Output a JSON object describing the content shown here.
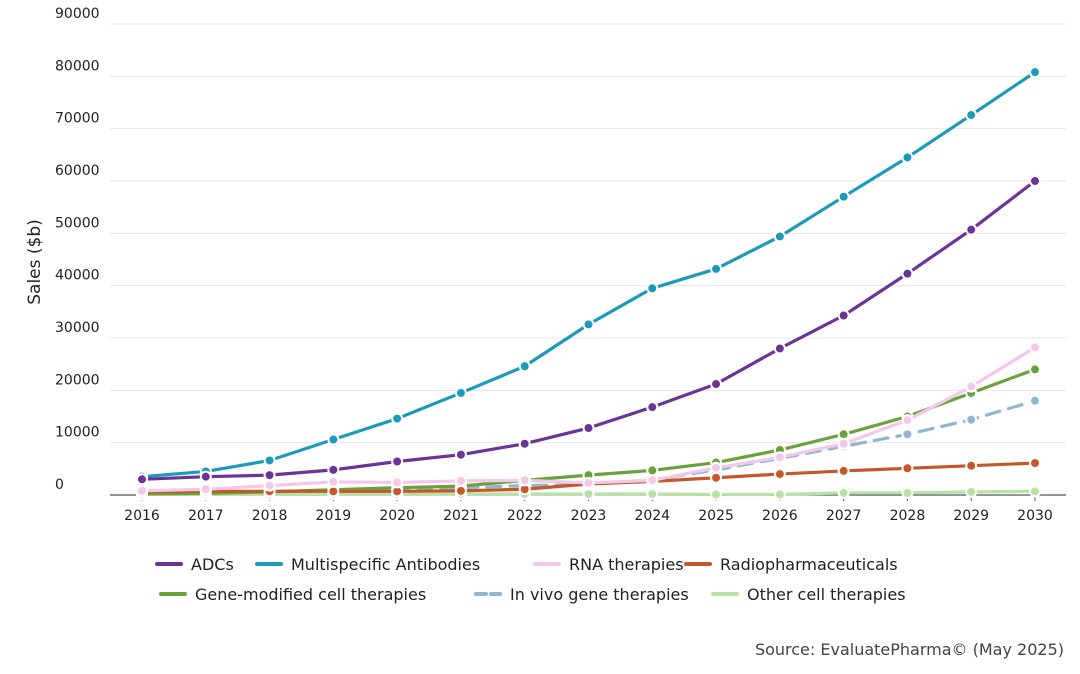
{
  "chart_data": {
    "type": "line",
    "title": "",
    "xlabel": "",
    "ylabel": "Sales ($b)",
    "ylim": [
      0,
      90000
    ],
    "yticks": [
      0,
      10000,
      20000,
      30000,
      40000,
      50000,
      60000,
      70000,
      80000,
      90000
    ],
    "grid": "horizontal",
    "legend_position": "bottom",
    "x": [
      "2016",
      "2017",
      "2018",
      "2019",
      "2020",
      "2021",
      "2022",
      "2023",
      "2024",
      "2025",
      "2026",
      "2027",
      "2028",
      "2029",
      "2030"
    ],
    "series": [
      {
        "name": "ADCs",
        "color": "#6a3596",
        "dash": false,
        "values": [
          3000,
          3500,
          3800,
          4800,
          6400,
          7700,
          9800,
          12800,
          16800,
          21200,
          28000,
          34300,
          42300,
          50700,
          60000
        ]
      },
      {
        "name": "Multispecific Antibodies",
        "color": "#1c9ab8",
        "dash": false,
        "values": [
          3500,
          4500,
          6600,
          10600,
          14600,
          19500,
          24600,
          32600,
          39500,
          43200,
          49400,
          57000,
          64500,
          72600,
          80800
        ]
      },
      {
        "name": "RNA therapies",
        "color": "#f3c8ea",
        "dash": false,
        "values": [
          800,
          1100,
          1800,
          2500,
          2400,
          2700,
          2800,
          2300,
          2800,
          5200,
          7200,
          9800,
          14300,
          20700,
          28200
        ]
      },
      {
        "name": "Radiopharmaceuticals",
        "color": "#c4582a",
        "dash": false,
        "values": [
          600,
          700,
          700,
          700,
          700,
          800,
          1100,
          2100,
          2600,
          3300,
          4000,
          4600,
          5100,
          5600,
          6100
        ]
      },
      {
        "name": "Gene-modified cell therapies",
        "color": "#6aa23a",
        "dash": false,
        "values": [
          200,
          300,
          600,
          1000,
          1400,
          1700,
          2800,
          3800,
          4700,
          6200,
          8600,
          11600,
          15000,
          19500,
          24000
        ]
      },
      {
        "name": "In vivo gene therapies",
        "color": "#8fb8ce",
        "dash": true,
        "values": [
          200,
          500,
          700,
          900,
          1200,
          1400,
          1800,
          2000,
          2900,
          4800,
          7000,
          9300,
          11600,
          14400,
          18000
        ]
      },
      {
        "name": "Other cell therapies",
        "color": "#b7e2a6",
        "dash": false,
        "values": [
          100,
          100,
          100,
          200,
          200,
          200,
          200,
          200,
          200,
          100,
          100,
          400,
          400,
          600,
          700
        ]
      }
    ],
    "source": "Source: EvaluatePharma© (May 2025)"
  }
}
